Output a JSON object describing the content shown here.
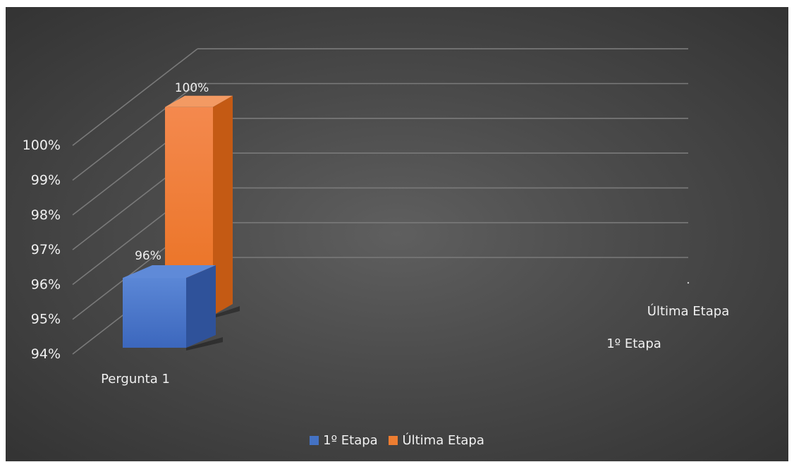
{
  "chart_data": {
    "type": "bar",
    "style": "3d-column",
    "categories": [
      "Pergunta 1"
    ],
    "series": [
      {
        "name": "1º Etapa",
        "values": [
          0.96
        ],
        "labels": [
          "96%"
        ],
        "color": "#4472C4"
      },
      {
        "name": "Última Etapa",
        "values": [
          1.0
        ],
        "labels": [
          "100%"
        ],
        "color": "#ED7D31"
      }
    ],
    "depth_axis_labels": [
      "Última Etapa",
      "1º Etapa"
    ],
    "y_ticks": [
      "94%",
      "95%",
      "96%",
      "97%",
      "98%",
      "99%",
      "100%"
    ],
    "ylim": [
      0.94,
      1.0
    ],
    "grid": true,
    "legend_position": "bottom",
    "background": "#4a4a4a",
    "title": "",
    "xlabel": "",
    "ylabel": ""
  }
}
